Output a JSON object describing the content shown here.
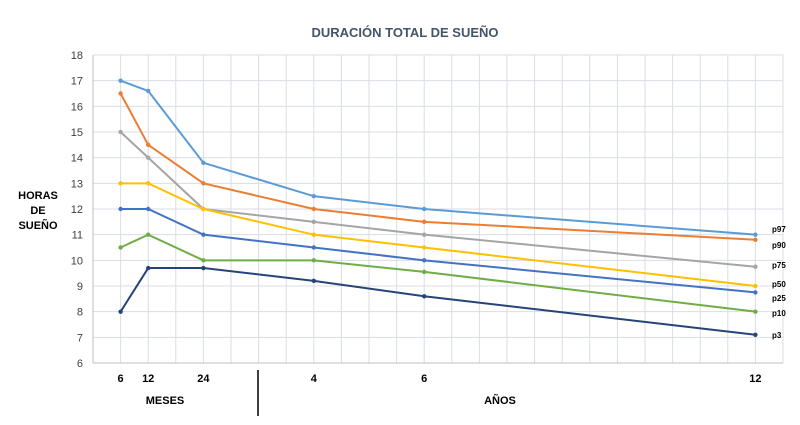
{
  "chart_data": {
    "type": "line",
    "title": "DURACIÓN TOTAL DE SUEÑO",
    "ylabel": [
      "HORAS",
      "DE",
      "SUEÑO"
    ],
    "x_group_labels": [
      "MESES",
      "AÑOS"
    ],
    "x_unit": "months",
    "xlim": [
      0,
      150
    ],
    "ylim": [
      6,
      18
    ],
    "yticks": [
      6,
      7,
      8,
      9,
      10,
      11,
      12,
      13,
      14,
      15,
      16,
      17,
      18
    ],
    "x": [
      6,
      12,
      24,
      48,
      72,
      144
    ],
    "xtick_labels": [
      "6",
      "12",
      "24",
      "4",
      "6",
      "12"
    ],
    "grid": true,
    "legend": "right end labels",
    "series": [
      {
        "name": "p97",
        "color": "#5b9bd5",
        "values": [
          17,
          16.6,
          13.8,
          12.5,
          12,
          11
        ]
      },
      {
        "name": "p90",
        "color": "#ed7d31",
        "values": [
          16.5,
          14.5,
          13,
          12,
          11.5,
          10.8
        ]
      },
      {
        "name": "p75",
        "color": "#a5a5a5",
        "values": [
          15,
          14,
          12,
          11.5,
          11,
          9.75
        ]
      },
      {
        "name": "p50",
        "color": "#ffc000",
        "values": [
          13,
          13,
          12,
          11,
          10.5,
          9
        ]
      },
      {
        "name": "p25",
        "color": "#4472c4",
        "values": [
          12,
          12,
          11,
          10.5,
          10,
          8.75
        ]
      },
      {
        "name": "p10",
        "color": "#70ad47",
        "values": [
          10.5,
          11,
          10,
          10,
          9.55,
          8
        ]
      },
      {
        "name": "p3",
        "color": "#264478",
        "values": [
          8,
          9.7,
          9.7,
          9.2,
          8.6,
          7.1
        ]
      }
    ]
  }
}
